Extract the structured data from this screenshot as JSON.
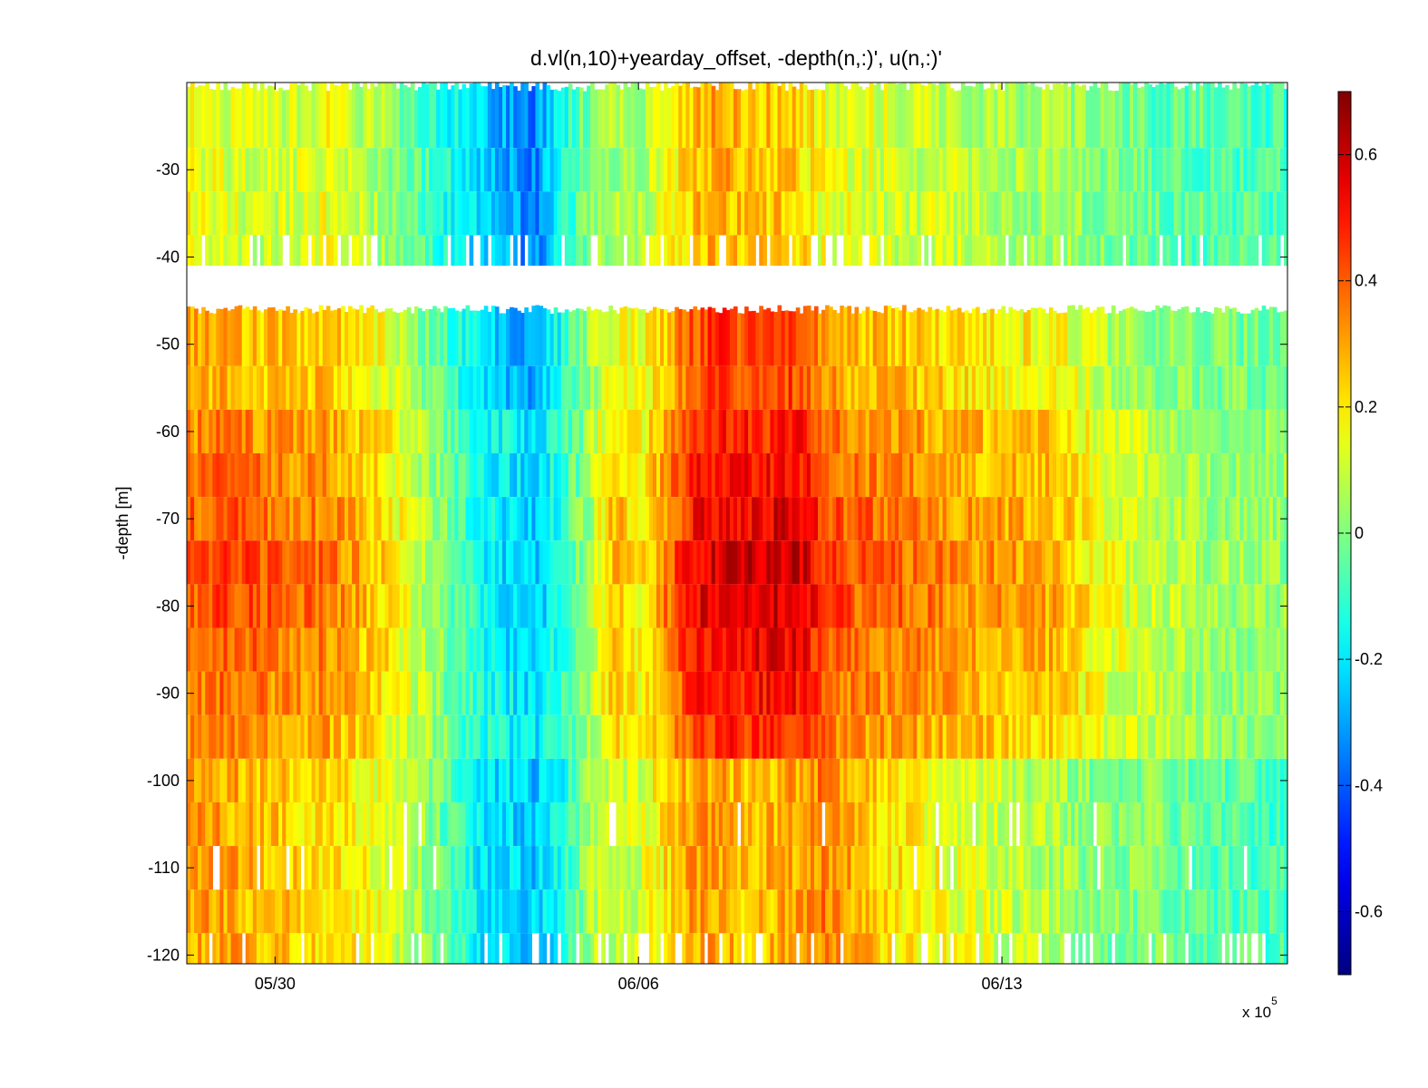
{
  "chart_data": {
    "type": "heatmap",
    "title": "d.vl(n,10)+yearday_offset, -depth(n,:)', u(n,:)'",
    "xlabel": "",
    "ylabel": "-depth [m]",
    "x_multiplier_label": "x 10",
    "x_multiplier_exponent": "5",
    "x_ticks": [
      "05/30",
      "06/06",
      "06/13"
    ],
    "x_tick_days": [
      2,
      9,
      16
    ],
    "xlim_days": [
      0.3,
      21.5
    ],
    "y_ticks": [
      -30,
      -40,
      -50,
      -60,
      -70,
      -80,
      -90,
      -100,
      -110,
      -120
    ],
    "ylim": [
      -121,
      -20
    ],
    "depth_bins": [
      -25,
      -30,
      -35,
      -40,
      -50,
      -55,
      -60,
      -65,
      -70,
      -75,
      -80,
      -85,
      -90,
      -95,
      -100,
      -105,
      -110,
      -115,
      -120
    ],
    "gap_depth_range": [
      -46,
      -41
    ],
    "colorbar": {
      "colormap": "jet",
      "clim": [
        -0.7,
        0.7
      ],
      "ticks": [
        0.6,
        0.4,
        0.2,
        0,
        -0.2,
        -0.4,
        -0.6
      ],
      "tick_labels": [
        "0.6",
        "0.4",
        "0.2",
        "0",
        "-0.2",
        "-0.4",
        "-0.6"
      ]
    },
    "u_grid": {
      "description_days": [
        0.3,
        1,
        2,
        3,
        4,
        5,
        6,
        7,
        7.5,
        8,
        8.5,
        9,
        10,
        10.5,
        11,
        12,
        12.5,
        13,
        14,
        15,
        16,
        17,
        18,
        19,
        20,
        21.5
      ],
      "columns": [
        {
          "day": 0.3,
          "surface": 0.15,
          "mid": 0.42,
          "deep": 0.3
        },
        {
          "day": 1,
          "surface": 0.12,
          "mid": 0.46,
          "deep": 0.3
        },
        {
          "day": 2,
          "surface": 0.1,
          "mid": 0.4,
          "deep": 0.25
        },
        {
          "day": 3,
          "surface": 0.15,
          "mid": 0.38,
          "deep": 0.22
        },
        {
          "day": 4,
          "surface": 0.05,
          "mid": 0.25,
          "deep": 0.15
        },
        {
          "day": 5,
          "surface": -0.1,
          "mid": 0.05,
          "deep": 0.0
        },
        {
          "day": 6,
          "surface": -0.25,
          "mid": -0.18,
          "deep": -0.2
        },
        {
          "day": 7,
          "surface": -0.35,
          "mid": -0.28,
          "deep": -0.25
        },
        {
          "day": 7.5,
          "surface": -0.15,
          "mid": -0.12,
          "deep": -0.15
        },
        {
          "day": 8,
          "surface": 0.0,
          "mid": 0.05,
          "deep": 0.05
        },
        {
          "day": 8.5,
          "surface": 0.05,
          "mid": 0.3,
          "deep": 0.1
        },
        {
          "day": 9,
          "surface": 0.05,
          "mid": 0.2,
          "deep": 0.12
        },
        {
          "day": 10,
          "surface": 0.25,
          "mid": 0.55,
          "deep": 0.3
        },
        {
          "day": 10.5,
          "surface": 0.3,
          "mid": 0.6,
          "deep": 0.3
        },
        {
          "day": 11,
          "surface": 0.25,
          "mid": 0.6,
          "deep": 0.25
        },
        {
          "day": 12,
          "surface": 0.25,
          "mid": 0.62,
          "deep": 0.3
        },
        {
          "day": 12.5,
          "surface": 0.15,
          "mid": 0.5,
          "deep": 0.35
        },
        {
          "day": 13,
          "surface": 0.15,
          "mid": 0.42,
          "deep": 0.3
        },
        {
          "day": 14,
          "surface": 0.1,
          "mid": 0.4,
          "deep": 0.2
        },
        {
          "day": 15,
          "surface": 0.1,
          "mid": 0.35,
          "deep": 0.15
        },
        {
          "day": 16,
          "surface": 0.05,
          "mid": 0.32,
          "deep": 0.1
        },
        {
          "day": 17,
          "surface": 0.05,
          "mid": 0.3,
          "deep": 0.05
        },
        {
          "day": 18,
          "surface": 0.0,
          "mid": 0.15,
          "deep": 0.0
        },
        {
          "day": 19,
          "surface": -0.05,
          "mid": 0.1,
          "deep": 0.0
        },
        {
          "day": 20,
          "surface": -0.05,
          "mid": 0.05,
          "deep": -0.05
        },
        {
          "day": 21.5,
          "surface": -0.08,
          "mid": 0.02,
          "deep": -0.08
        }
      ]
    }
  }
}
